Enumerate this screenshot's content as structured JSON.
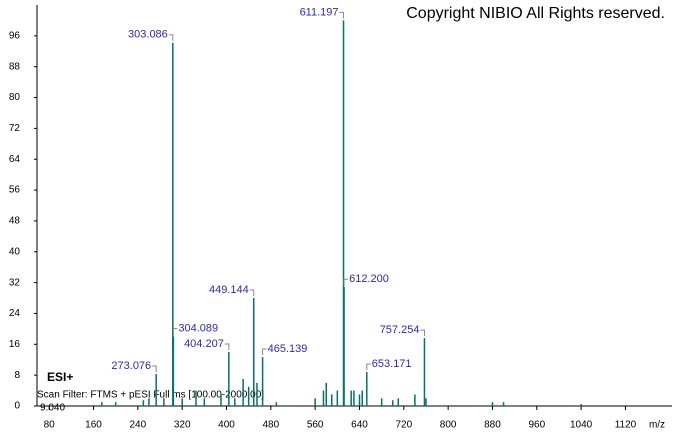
{
  "chart_data": {
    "type": "spectrum",
    "title": "Copyright NIBIO All Rights reserved.",
    "annotations": [
      "ESI+",
      "Scan Filter: FTMS + pESI Full ms [100.00-2000.00]",
      "9.040"
    ],
    "x_label": "m/z",
    "xlim": [
      58,
      1204
    ],
    "ylim": [
      0,
      104
    ],
    "xticks": [
      80,
      160,
      240,
      320,
      400,
      480,
      560,
      640,
      720,
      800,
      880,
      960,
      1040,
      1120
    ],
    "yticks": [
      0,
      8,
      16,
      24,
      32,
      40,
      48,
      56,
      64,
      72,
      80,
      88,
      96
    ],
    "series": [
      {
        "name": "ESI+",
        "color": "#00736b",
        "x": [
          175,
          200,
          250,
          260,
          273.076,
          287,
          303.086,
          304.089,
          320,
          345,
          360,
          390,
          404.207,
          415,
          430,
          440,
          449.144,
          455,
          465.139,
          490,
          560,
          575,
          580,
          590,
          600,
          611.197,
          612.2,
          625,
          630,
          640,
          645,
          653.171,
          680,
          700,
          710,
          740,
          757.254,
          760,
          880,
          900,
          1040
        ],
        "values": [
          1,
          1,
          1.5,
          2,
          8.3,
          2,
          94.2,
          18,
          2,
          4,
          2,
          3,
          14,
          2,
          7,
          5,
          28,
          6,
          12.7,
          1,
          2,
          4,
          6,
          3,
          4,
          100,
          30.8,
          4,
          4,
          3,
          4,
          8.8,
          2,
          1.5,
          2,
          3,
          17.6,
          2,
          1,
          1,
          0.5
        ],
        "labels": [
          null,
          null,
          null,
          null,
          "273.076",
          null,
          "303.086",
          "304.089",
          null,
          null,
          null,
          null,
          "404.207",
          null,
          null,
          null,
          "449.144",
          null,
          "465.139",
          null,
          null,
          null,
          null,
          null,
          null,
          "611.197",
          "612.200",
          null,
          null,
          null,
          null,
          "653.171",
          null,
          null,
          null,
          null,
          "757.254",
          null,
          null,
          null,
          null
        ]
      }
    ]
  }
}
